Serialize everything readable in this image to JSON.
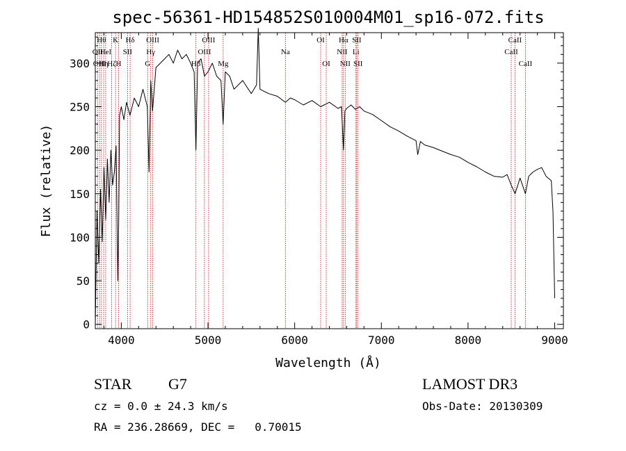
{
  "chart_data": {
    "type": "line",
    "title": "spec-56361-HD154852S010004M01_sp16-072.fits",
    "xlabel": "Wavelength (Å)",
    "ylabel": "Flux (relative)",
    "xlim": [
      3700,
      9100
    ],
    "ylim": [
      -5,
      335
    ],
    "xticks": [
      4000,
      5000,
      6000,
      7000,
      8000,
      9000
    ],
    "xtick_labels": [
      "4000",
      "5000",
      "6000",
      "7000",
      "8000",
      "9000"
    ],
    "yticks": [
      0,
      50,
      100,
      150,
      200,
      250,
      300
    ],
    "ytick_labels": [
      "0",
      "50",
      "100",
      "150",
      "200",
      "250",
      "300"
    ],
    "series": [
      {
        "name": "spectrum",
        "x": [
          3700,
          3720,
          3740,
          3760,
          3780,
          3800,
          3820,
          3840,
          3860,
          3880,
          3900,
          3920,
          3940,
          3960,
          3970,
          3980,
          4000,
          4030,
          4060,
          4100,
          4150,
          4200,
          4250,
          4300,
          4320,
          4340,
          4360,
          4400,
          4450,
          4500,
          4550,
          4600,
          4650,
          4700,
          4750,
          4800,
          4840,
          4861,
          4880,
          4920,
          4960,
          5000,
          5050,
          5100,
          5150,
          5175,
          5200,
          5250,
          5300,
          5400,
          5500,
          5560,
          5580,
          5600,
          5700,
          5800,
          5893,
          5950,
          6000,
          6100,
          6200,
          6300,
          6400,
          6500,
          6540,
          6563,
          6580,
          6600,
          6650,
          6700,
          6750,
          6800,
          6900,
          7000,
          7100,
          7200,
          7300,
          7400,
          7420,
          7450,
          7500,
          7600,
          7700,
          7800,
          7900,
          8000,
          8100,
          8200,
          8300,
          8400,
          8450,
          8498,
          8542,
          8600,
          8662,
          8700,
          8750,
          8800,
          8850,
          8900,
          8960,
          8980,
          9000
        ],
        "y": [
          0,
          130,
          70,
          155,
          95,
          180,
          120,
          190,
          140,
          200,
          160,
          175,
          205,
          50,
          120,
          240,
          250,
          235,
          255,
          240,
          260,
          250,
          270,
          250,
          175,
          280,
          245,
          295,
          300,
          305,
          310,
          300,
          315,
          305,
          310,
          300,
          290,
          200,
          300,
          305,
          285,
          290,
          300,
          285,
          280,
          230,
          290,
          285,
          270,
          280,
          265,
          275,
          340,
          270,
          265,
          262,
          255,
          260,
          258,
          252,
          257,
          250,
          255,
          248,
          250,
          200,
          245,
          248,
          252,
          247,
          250,
          245,
          241,
          234,
          227,
          222,
          216,
          211,
          195,
          210,
          206,
          203,
          199,
          195,
          192,
          186,
          181,
          175,
          170,
          169,
          172,
          160,
          150,
          168,
          150,
          170,
          175,
          178,
          180,
          170,
          165,
          130,
          30
        ]
      }
    ],
    "lines": [
      {
        "wl": 3727,
        "label": "OII",
        "row": 2
      },
      {
        "wl": 3750,
        "label": "OIII",
        "row": 3
      },
      {
        "wl": 3771,
        "label": "Hθ",
        "row": 1
      },
      {
        "wl": 3797,
        "label": "Hη",
        "row": 3
      },
      {
        "wl": 3820,
        "label": "HeI",
        "row": 2
      },
      {
        "wl": 3889,
        "label": "Hζ",
        "row": 3
      },
      {
        "wl": 3934,
        "label": "K",
        "row": 1
      },
      {
        "wl": 3969,
        "label": "H",
        "row": 3
      },
      {
        "wl": 4072,
        "label": "SII",
        "row": 2
      },
      {
        "wl": 4102,
        "label": "Hδ",
        "row": 1
      },
      {
        "wl": 4304,
        "label": "G",
        "row": 3
      },
      {
        "wl": 4340,
        "label": "Hγ",
        "row": 2
      },
      {
        "wl": 4363,
        "label": "OIII",
        "row": 1
      },
      {
        "wl": 4861,
        "label": "Hβ",
        "row": 3
      },
      {
        "wl": 4959,
        "label": "OIII",
        "row": 2
      },
      {
        "wl": 5007,
        "label": "OIII",
        "row": 1
      },
      {
        "wl": 5175,
        "label": "Mg",
        "row": 3
      },
      {
        "wl": 5893,
        "label": "Na",
        "row": 2
      },
      {
        "wl": 6300,
        "label": "OI",
        "row": 1
      },
      {
        "wl": 6364,
        "label": "OI",
        "row": 3
      },
      {
        "wl": 6548,
        "label": "NII",
        "row": 2
      },
      {
        "wl": 6563,
        "label": "Hα",
        "row": 1
      },
      {
        "wl": 6583,
        "label": "NII",
        "row": 3
      },
      {
        "wl": 6707,
        "label": "Li",
        "row": 2
      },
      {
        "wl": 6716,
        "label": "SII",
        "row": 1
      },
      {
        "wl": 6731,
        "label": "SII",
        "row": 3
      },
      {
        "wl": 8498,
        "label": "CaII",
        "row": 2
      },
      {
        "wl": 8542,
        "label": "CaII",
        "row": 1
      },
      {
        "wl": 8662,
        "label": "CaII",
        "row": 3
      }
    ],
    "grid": false,
    "line_color": "#000000",
    "marker_color": "#c00000"
  },
  "info": {
    "object_class": "STAR",
    "subclass": "G7",
    "survey": "LAMOST DR3",
    "redshift": "cz = 0.0 ± 24.3 km/s",
    "obs_date": "Obs-Date: 20130309",
    "coords": "RA = 236.28669, DEC =   0.70015"
  }
}
